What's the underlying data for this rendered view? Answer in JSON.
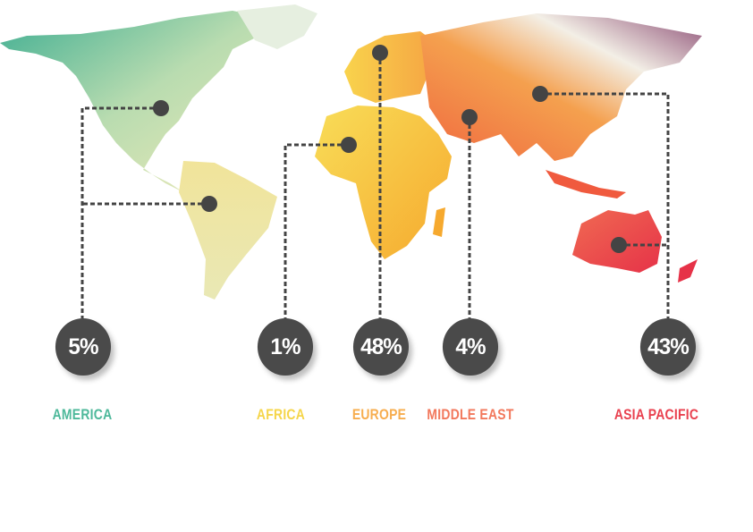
{
  "regions": [
    {
      "name": "AMERICA",
      "value": "5%",
      "color": "#4db89a"
    },
    {
      "name": "AFRICA",
      "value": "1%",
      "color": "#f5d54a"
    },
    {
      "name": "EUROPE",
      "value": "48%",
      "color": "#f7ad4e"
    },
    {
      "name": "MIDDLE EAST",
      "value": "4%",
      "color": "#f2785c"
    },
    {
      "name": "ASIA PACIFIC",
      "value": "43%",
      "color": "#e9414f"
    }
  ],
  "connector_color": "#444444"
}
